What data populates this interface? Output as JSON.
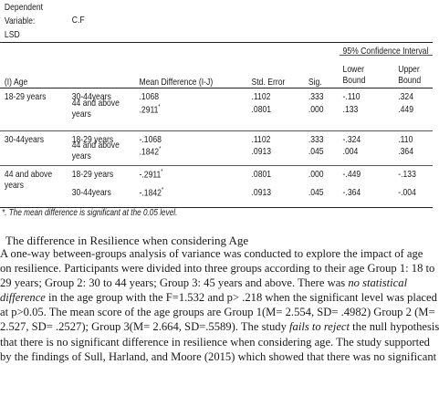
{
  "table": {
    "dep_var_label_1": "Dependent",
    "dep_var_label_2": "Variable:",
    "dep_var_label_3": "LSD",
    "dep_var_value": "C.F",
    "ci_header": "95% Confidence Interval",
    "headers": {
      "age_i": "(I) Age",
      "mean_diff": "Mean Difference (I-J)",
      "std_error": "Std. Error",
      "sig": "Sig.",
      "lower_1": "Lower",
      "lower_2": "Bound",
      "upper_1": "Upper",
      "upper_2": "Bound"
    },
    "groups": [
      {
        "age_i": [
          "18-29 years"
        ],
        "rows": [
          {
            "age_j": [
              "30-44years"
            ],
            "mean_diff": ".1068",
            "star": "",
            "std_error": ".1102",
            "sig": ".333",
            "lower": "-.110",
            "upper": ".324"
          },
          {
            "age_j": [
              "44 and above",
              "years"
            ],
            "mean_diff": ".2911",
            "star": "*",
            "std_error": ".0801",
            "sig": ".000",
            "lower": ".133",
            "upper": ".449"
          }
        ]
      },
      {
        "age_i": [
          "30-44years"
        ],
        "rows": [
          {
            "age_j": [
              "18-29 years"
            ],
            "mean_diff": "-.1068",
            "star": "",
            "std_error": ".1102",
            "sig": ".333",
            "lower": "-.324",
            "upper": ".110"
          },
          {
            "age_j": [
              "44 and above",
              "years"
            ],
            "mean_diff": ".1842",
            "star": "*",
            "std_error": ".0913",
            "sig": ".045",
            "lower": ".004",
            "upper": ".364"
          }
        ]
      },
      {
        "age_i": [
          "44 and above",
          "years"
        ],
        "rows": [
          {
            "age_j": [
              "18-29 years"
            ],
            "mean_diff": "-.2911",
            "star": "*",
            "std_error": ".0801",
            "sig": ".000",
            "lower": "-.449",
            "upper": "-.133"
          },
          {
            "age_j": [
              "30-44years"
            ],
            "mean_diff": "-.1842",
            "star": "*",
            "std_error": ".0913",
            "sig": ".045",
            "lower": "-.364",
            "upper": "-.004"
          }
        ]
      }
    ],
    "footnote": "*. The mean difference is significant at the 0.05 level."
  },
  "section_heading": "The difference in Resilience when considering Age",
  "paragraph": [
    [
      {
        "t": "A one-way between-groups analysis of variance was conducted to explore the impact of age"
      }
    ],
    [
      {
        "t": "on resilience. Participants were divided into three groups according to their age Group 1: 18 to"
      }
    ],
    [
      {
        "t": "29 years; Group 2: 30 to 44 years; Group 3: 45 years and above. There was "
      },
      {
        "t": "no statistical",
        "i": true
      }
    ],
    [
      {
        "t": "difference",
        "i": true
      },
      {
        "t": " in the age group with the F=1.532 and p> .218 when the significant level was placed"
      }
    ],
    [
      {
        "t": "at p>0.05. The mean score of the age groups are Group 1(M= 2.554, SD= .4982) Group 2 (M="
      }
    ],
    [
      {
        "t": "2.527, SD= .2527); Group 3(M= 2.664, SD=.5589). The study "
      },
      {
        "t": "fails to reject",
        "i": true
      },
      {
        "t": " the null hypothesis"
      }
    ],
    [
      {
        "t": "that there is no significant difference in resilience when considering age. The study supported"
      }
    ],
    [
      {
        "t": "by the findings of Sull, Harland, and Moore (2015) which showed that there was no significant"
      }
    ]
  ]
}
